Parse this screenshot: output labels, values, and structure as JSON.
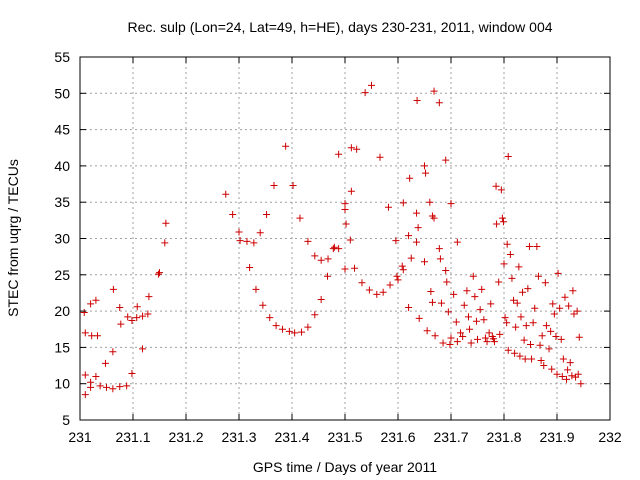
{
  "chart_data": {
    "type": "scatter",
    "title": "Rec. sulp (Lon=24, Lat=49, h=HE), days 230-231, 2011, window 004",
    "xlabel": "GPS time / Days of year 2011",
    "ylabel": "STEC from uqrg / TECUs",
    "xlim": [
      231,
      232
    ],
    "ylim": [
      5,
      55
    ],
    "xticks": [
      231,
      231.1,
      231.2,
      231.3,
      231.4,
      231.5,
      231.6,
      231.7,
      231.8,
      231.9,
      232
    ],
    "xtick_labels": [
      "231",
      "231.1",
      "231.2",
      "231.3",
      "231.4",
      "231.5",
      "231.6",
      "231.7",
      "231.8",
      "231.9",
      "232"
    ],
    "yticks": [
      5,
      10,
      15,
      20,
      25,
      30,
      35,
      40,
      45,
      50,
      55
    ],
    "ytick_labels": [
      "5",
      "10",
      "15",
      "20",
      "25",
      "30",
      "35",
      "40",
      "45",
      "50",
      "55"
    ],
    "grid": true,
    "marker": "plus",
    "color": "#cc0000",
    "series": [
      {
        "points": [
          [
            231.008,
            19.8
          ],
          [
            231.02,
            21.0
          ],
          [
            231.03,
            21.5
          ],
          [
            231.01,
            17.0
          ],
          [
            231.022,
            16.6
          ],
          [
            231.033,
            16.6
          ],
          [
            231.01,
            11.2
          ],
          [
            231.02,
            10.2
          ],
          [
            231.03,
            11.0
          ],
          [
            231.01,
            8.5
          ],
          [
            231.02,
            9.5
          ],
          [
            231.038,
            9.7
          ],
          [
            231.05,
            9.5
          ],
          [
            231.062,
            9.3
          ],
          [
            231.075,
            9.6
          ],
          [
            231.088,
            9.7
          ],
          [
            231.098,
            11.4
          ],
          [
            231.048,
            12.8
          ],
          [
            231.062,
            14.4
          ],
          [
            231.063,
            23.0
          ],
          [
            231.075,
            20.5
          ],
          [
            231.077,
            18.2
          ],
          [
            231.09,
            19.2
          ],
          [
            231.098,
            18.7
          ],
          [
            231.107,
            19.1
          ],
          [
            231.118,
            19.3
          ],
          [
            231.128,
            19.6
          ],
          [
            231.108,
            20.6
          ],
          [
            231.13,
            22.0
          ],
          [
            231.118,
            14.8
          ],
          [
            231.148,
            25.1
          ],
          [
            231.15,
            25.3
          ],
          [
            231.16,
            29.4
          ],
          [
            231.162,
            32.1
          ],
          [
            231.275,
            36.1
          ],
          [
            231.288,
            33.3
          ],
          [
            231.3,
            30.9
          ],
          [
            231.302,
            29.7
          ],
          [
            231.315,
            29.6
          ],
          [
            231.328,
            29.4
          ],
          [
            231.34,
            30.8
          ],
          [
            231.352,
            33.3
          ],
          [
            231.366,
            37.3
          ],
          [
            231.388,
            42.7
          ],
          [
            231.402,
            37.3
          ],
          [
            231.415,
            32.8
          ],
          [
            231.43,
            29.6
          ],
          [
            231.443,
            27.6
          ],
          [
            231.455,
            27.0
          ],
          [
            231.468,
            27.2
          ],
          [
            231.478,
            28.6
          ],
          [
            231.488,
            41.6
          ],
          [
            231.5,
            34.8
          ],
          [
            231.5,
            34.0
          ],
          [
            231.502,
            32.0
          ],
          [
            231.51,
            29.8
          ],
          [
            231.512,
            36.5
          ],
          [
            231.512,
            42.5
          ],
          [
            231.522,
            42.3
          ],
          [
            231.538,
            50.1
          ],
          [
            231.55,
            51.1
          ],
          [
            231.566,
            41.2
          ],
          [
            231.582,
            34.3
          ],
          [
            231.596,
            29.7
          ],
          [
            231.61,
            34.9
          ],
          [
            231.62,
            30.4
          ],
          [
            231.622,
            38.3
          ],
          [
            231.635,
            33.5
          ],
          [
            231.638,
            31.5
          ],
          [
            231.636,
            49.0
          ],
          [
            231.65,
            40.0
          ],
          [
            231.652,
            39.0
          ],
          [
            231.66,
            35.0
          ],
          [
            231.665,
            33.1
          ],
          [
            231.668,
            50.3
          ],
          [
            231.678,
            48.7
          ],
          [
            231.69,
            40.8
          ],
          [
            231.7,
            34.8
          ],
          [
            231.712,
            29.5
          ],
          [
            231.32,
            26.0
          ],
          [
            231.332,
            23.0
          ],
          [
            231.345,
            20.8
          ],
          [
            231.358,
            19.1
          ],
          [
            231.37,
            18.0
          ],
          [
            231.382,
            17.5
          ],
          [
            231.395,
            17.2
          ],
          [
            231.405,
            17.0
          ],
          [
            231.418,
            17.1
          ],
          [
            231.43,
            17.8
          ],
          [
            231.443,
            19.5
          ],
          [
            231.455,
            21.6
          ],
          [
            231.467,
            24.8
          ],
          [
            231.48,
            28.8
          ],
          [
            231.488,
            28.6
          ],
          [
            231.5,
            25.8
          ],
          [
            231.518,
            25.9
          ],
          [
            231.532,
            23.9
          ],
          [
            231.546,
            22.9
          ],
          [
            231.56,
            22.3
          ],
          [
            231.572,
            22.6
          ],
          [
            231.585,
            23.6
          ],
          [
            231.598,
            24.8
          ],
          [
            231.6,
            24.3
          ],
          [
            231.608,
            26.2
          ],
          [
            231.61,
            25.7
          ],
          [
            231.62,
            20.5
          ],
          [
            231.625,
            27.3
          ],
          [
            231.635,
            29.5
          ],
          [
            231.64,
            19.0
          ],
          [
            231.65,
            26.8
          ],
          [
            231.655,
            17.3
          ],
          [
            231.662,
            22.7
          ],
          [
            231.665,
            21.2
          ],
          [
            231.668,
            32.8
          ],
          [
            231.67,
            16.6
          ],
          [
            231.678,
            28.6
          ],
          [
            231.68,
            27.2
          ],
          [
            231.685,
            15.6
          ],
          [
            231.682,
            21.1
          ],
          [
            231.69,
            25.6
          ],
          [
            231.692,
            24.0
          ],
          [
            231.695,
            19.9
          ],
          [
            231.698,
            15.4
          ],
          [
            231.7,
            16.3
          ],
          [
            231.705,
            22.3
          ],
          [
            231.71,
            18.5
          ],
          [
            231.712,
            15.8
          ],
          [
            231.718,
            17.0
          ],
          [
            231.722,
            16.5
          ],
          [
            231.725,
            20.8
          ],
          [
            231.73,
            22.8
          ],
          [
            231.733,
            19.2
          ],
          [
            231.735,
            17.5
          ],
          [
            231.738,
            15.6
          ],
          [
            231.742,
            24.8
          ],
          [
            231.745,
            22.0
          ],
          [
            231.748,
            18.6
          ],
          [
            231.75,
            16.1
          ],
          [
            231.755,
            20.2
          ],
          [
            231.758,
            23.0
          ],
          [
            231.762,
            18.8
          ],
          [
            231.765,
            16.3
          ],
          [
            231.768,
            15.8
          ],
          [
            231.772,
            17.0
          ],
          [
            231.775,
            21.0
          ],
          [
            231.778,
            16.5
          ],
          [
            231.78,
            16.2
          ],
          [
            231.782,
            15.8
          ],
          [
            231.785,
            37.2
          ],
          [
            231.786,
            32.0
          ],
          [
            231.79,
            24.0
          ],
          [
            231.792,
            16.8
          ],
          [
            231.795,
            36.7
          ],
          [
            231.797,
            32.8
          ],
          [
            231.799,
            32.3
          ],
          [
            231.8,
            26.5
          ],
          [
            231.802,
            19.1
          ],
          [
            231.805,
            18.4
          ],
          [
            231.808,
            14.6
          ],
          [
            231.806,
            29.2
          ],
          [
            231.808,
            41.3
          ],
          [
            231.812,
            27.8
          ],
          [
            231.815,
            24.5
          ],
          [
            231.818,
            21.5
          ],
          [
            231.82,
            14.2
          ],
          [
            231.822,
            17.8
          ],
          [
            231.825,
            21.1
          ],
          [
            231.828,
            26.1
          ],
          [
            231.83,
            13.8
          ],
          [
            231.832,
            19.2
          ],
          [
            231.835,
            22.6
          ],
          [
            231.838,
            16.0
          ],
          [
            231.84,
            13.4
          ],
          [
            231.842,
            18.0
          ],
          [
            231.845,
            23.1
          ],
          [
            231.848,
            28.9
          ],
          [
            231.85,
            15.4
          ],
          [
            231.852,
            13.4
          ],
          [
            231.855,
            18.4
          ],
          [
            231.858,
            20.4
          ],
          [
            231.862,
            28.9
          ],
          [
            231.865,
            24.8
          ],
          [
            231.868,
            15.3
          ],
          [
            231.87,
            13.2
          ],
          [
            231.872,
            16.6
          ],
          [
            231.875,
            12.5
          ],
          [
            231.878,
            23.9
          ],
          [
            231.88,
            18.0
          ],
          [
            231.885,
            14.8
          ],
          [
            231.888,
            17.2
          ],
          [
            231.89,
            12.0
          ],
          [
            231.892,
            21.0
          ],
          [
            231.895,
            19.6
          ],
          [
            231.898,
            16.5
          ],
          [
            231.9,
            11.3
          ],
          [
            231.902,
            25.2
          ],
          [
            231.905,
            20.4
          ],
          [
            231.908,
            16.1
          ],
          [
            231.91,
            11.0
          ],
          [
            231.912,
            13.4
          ],
          [
            231.915,
            21.9
          ],
          [
            231.918,
            10.6
          ],
          [
            231.92,
            11.9
          ],
          [
            231.922,
            20.7
          ],
          [
            231.925,
            12.9
          ],
          [
            231.928,
            11.1
          ],
          [
            231.93,
            22.8
          ],
          [
            231.932,
            19.6
          ],
          [
            231.935,
            10.9
          ],
          [
            231.938,
            20.0
          ],
          [
            231.94,
            11.3
          ],
          [
            231.942,
            16.4
          ],
          [
            231.945,
            10.0
          ]
        ]
      }
    ]
  }
}
